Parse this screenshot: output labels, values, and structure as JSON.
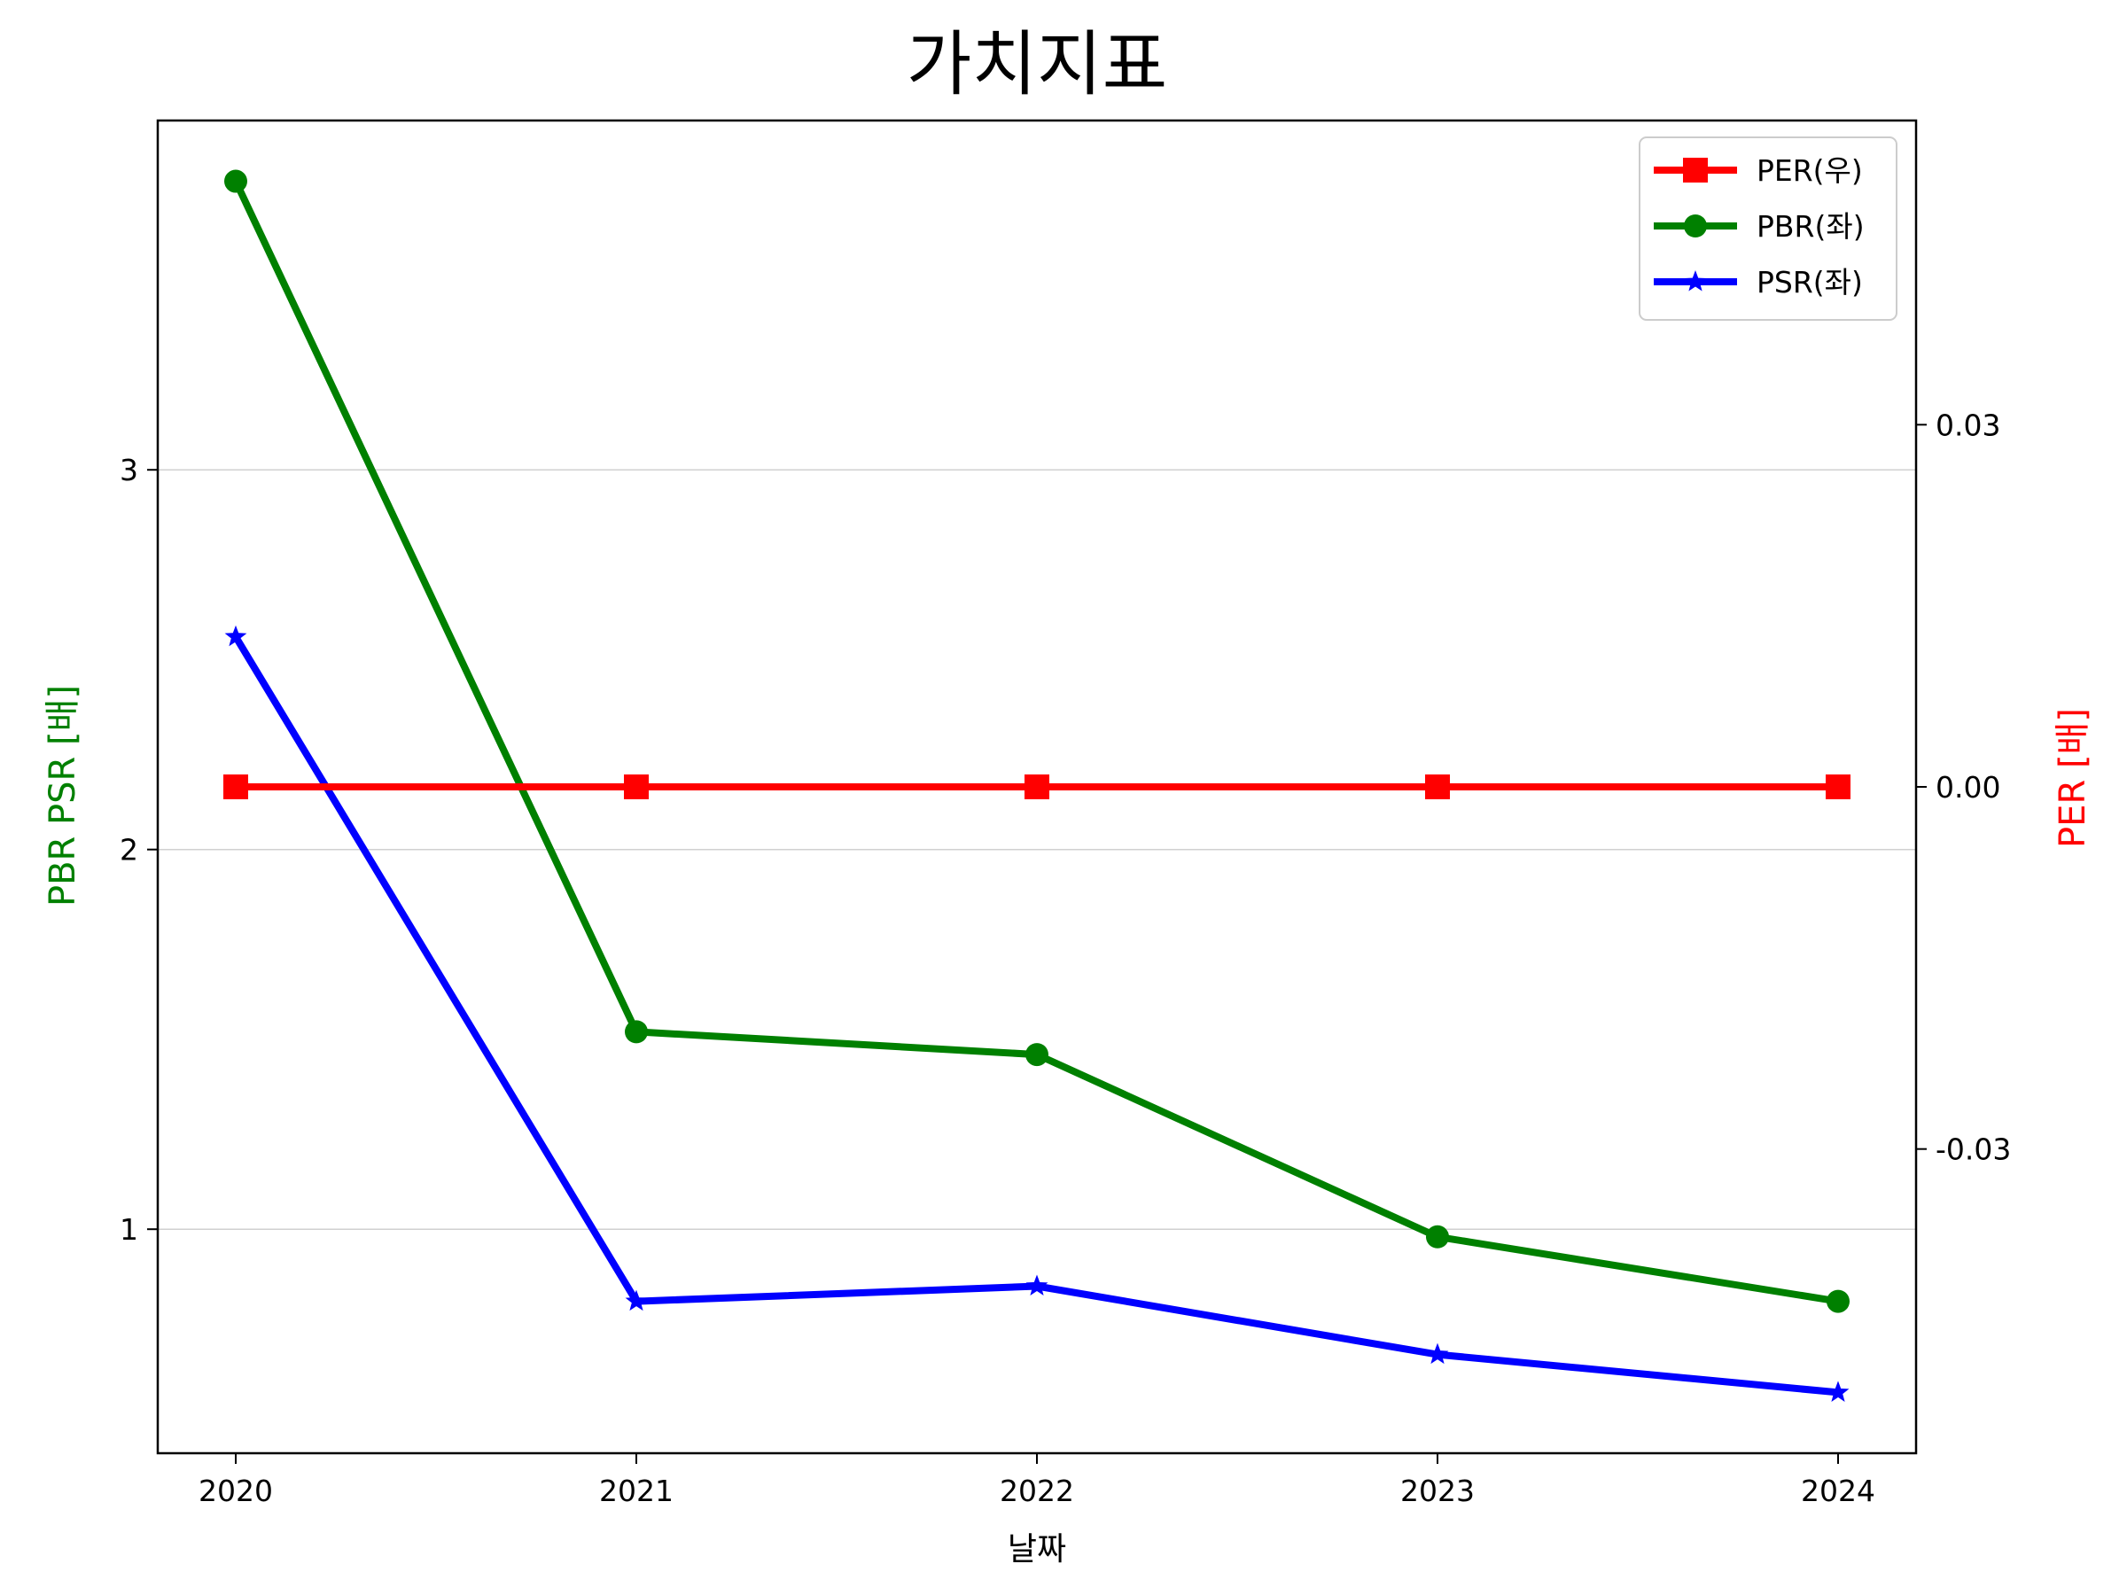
{
  "chart_data": {
    "type": "line",
    "title": "가치지표",
    "xlabel": "날짜",
    "ylabel_left": "PBR PSR [배]",
    "ylabel_right": "PER [배]",
    "categories": [
      "2020",
      "2021",
      "2022",
      "2023",
      "2024"
    ],
    "left_axis": {
      "ticks": [
        1,
        2,
        3
      ],
      "tick_labels": [
        "1",
        "2",
        "3"
      ],
      "ylim": [
        0.41,
        3.92
      ],
      "grid": true
    },
    "right_axis": {
      "ticks": [
        -0.03,
        0.0,
        0.03
      ],
      "tick_labels": [
        "-0.03",
        "0.00",
        "0.03"
      ],
      "ylim": [
        -0.0552,
        0.0552
      ],
      "grid": false
    },
    "series": [
      {
        "name": "PER(우)",
        "axis": "right",
        "marker": "square",
        "color": "#ff0000",
        "values": [
          0,
          0,
          0,
          0,
          0
        ]
      },
      {
        "name": "PBR(좌)",
        "axis": "left",
        "marker": "circle",
        "color": "#008000",
        "values": [
          3.76,
          1.52,
          1.46,
          0.98,
          0.81
        ]
      },
      {
        "name": "PSR(좌)",
        "axis": "left",
        "marker": "star",
        "color": "#0000ff",
        "values": [
          2.56,
          0.81,
          0.85,
          0.67,
          0.57
        ]
      }
    ],
    "legend_position": "top-right",
    "colors": {
      "ylabel_left": "#008000",
      "ylabel_right": "#ff0000",
      "grid": "#d0d0d0"
    }
  }
}
